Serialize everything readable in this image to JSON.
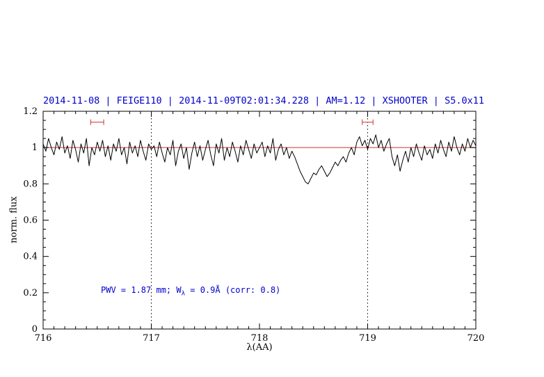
{
  "figure": {
    "colors": {
      "title": "#0000cc",
      "annotation": "#0000cc",
      "spectrum": "#000000",
      "reference_line": "#cc3333",
      "marker": "#cc3333",
      "dotted_line": "#000000",
      "frame": "#000000"
    }
  },
  "chart_data": {
    "type": "line",
    "title": "2014-11-08 | FEIGE110 | 2014-11-09T02:01:34.228 | AM=1.12 | XSHOOTER | S5.0x11",
    "xlabel": "λ(AA)",
    "ylabel": "norm. flux",
    "xlim": [
      716,
      720
    ],
    "ylim": [
      0,
      1.2
    ],
    "grid": false,
    "x_ticks": [
      716,
      717,
      718,
      719,
      720
    ],
    "x_tick_labels": [
      "716",
      "717",
      "718",
      "719",
      "720"
    ],
    "y_ticks": [
      0,
      0.2,
      0.4,
      0.6,
      0.8,
      1,
      1.2
    ],
    "y_tick_labels": [
      "0",
      "0.2",
      "0.4",
      "0.6",
      "0.8",
      "1",
      "1.2"
    ],
    "x_minor_step": 0.1,
    "y_minor_step": 0.05,
    "y_major_step": 0.2,
    "x_start": 716,
    "x_step": 0.025,
    "series": [
      {
        "name": "normalized spectrum",
        "values": [
          1.02,
          0.98,
          1.05,
          1.0,
          0.96,
          1.03,
          0.99,
          1.06,
          0.97,
          1.01,
          0.94,
          1.04,
          0.99,
          0.92,
          1.02,
          0.97,
          1.05,
          0.9,
          1.0,
          0.96,
          1.03,
          0.98,
          1.04,
          0.95,
          1.01,
          0.93,
          1.02,
          0.98,
          1.05,
          0.96,
          1.0,
          0.91,
          1.03,
          0.97,
          1.01,
          0.95,
          1.04,
          0.98,
          0.93,
          1.02,
          0.99,
          1.01,
          0.95,
          1.03,
          0.97,
          0.92,
          1.0,
          0.96,
          1.04,
          0.9,
          0.98,
          1.02,
          0.94,
          1.0,
          0.88,
          0.97,
          1.03,
          0.95,
          1.01,
          0.93,
          0.99,
          1.04,
          0.96,
          0.9,
          1.02,
          0.97,
          1.05,
          0.93,
          1.0,
          0.95,
          1.03,
          0.98,
          0.92,
          1.01,
          0.96,
          1.04,
          0.99,
          0.94,
          1.02,
          0.97,
          1.0,
          1.03,
          0.95,
          1.01,
          0.97,
          1.05,
          0.93,
          0.99,
          1.02,
          0.96,
          1.0,
          0.94,
          0.98,
          0.95,
          0.91,
          0.87,
          0.84,
          0.81,
          0.8,
          0.83,
          0.86,
          0.85,
          0.88,
          0.9,
          0.87,
          0.84,
          0.86,
          0.89,
          0.92,
          0.9,
          0.93,
          0.95,
          0.92,
          0.97,
          1.0,
          0.96,
          1.03,
          1.06,
          1.01,
          1.04,
          0.99,
          1.05,
          1.02,
          1.07,
          1.0,
          1.04,
          0.98,
          1.02,
          1.05,
          0.95,
          0.9,
          0.96,
          0.87,
          0.93,
          0.98,
          0.92,
          1.0,
          0.95,
          1.02,
          0.97,
          0.93,
          1.01,
          0.96,
          0.99,
          0.94,
          1.02,
          0.97,
          1.04,
          0.99,
          0.95,
          1.03,
          0.98,
          1.06,
          1.0,
          0.96,
          1.02,
          0.98,
          1.05,
          1.0,
          1.04,
          1.01
        ]
      }
    ],
    "reference_line_y": 1,
    "dotted_lines_x": [
      717,
      719
    ],
    "markers": [
      {
        "x_min": 716.44,
        "x_max": 716.56,
        "y": 1.14
      },
      {
        "x_min": 718.95,
        "x_max": 719.05,
        "y": 1.14
      }
    ],
    "annotation": {
      "prefix": "PWV = 1.87 mm; W",
      "subscript": "λ",
      "suffix": " = 0.9Å (corr: 0.8)",
      "full_text": "PWV = 1.87 mm; Wλ = 0.9Å (corr: 0.8)"
    }
  }
}
